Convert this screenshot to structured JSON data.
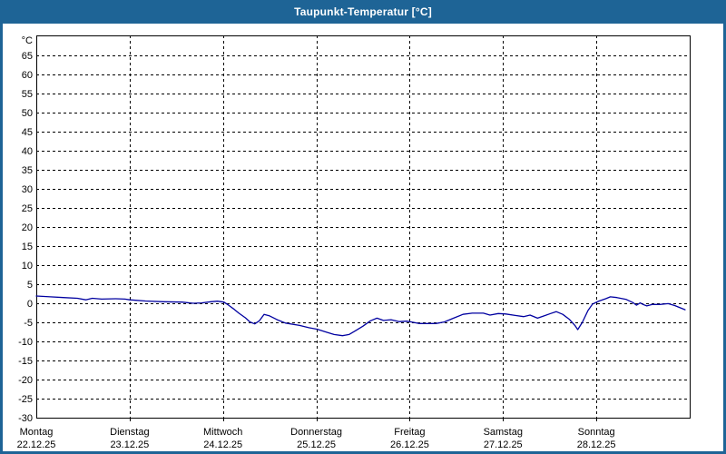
{
  "window": {
    "title": "Taupunkt-Temperatur [°C]"
  },
  "chart_data": {
    "type": "line",
    "title": "Taupunkt-Temperatur [°C]",
    "y_unit_label": "°C",
    "ylabel": "",
    "xlabel": "",
    "ylim": [
      -30,
      70
    ],
    "y_tick_step": 5,
    "y_tick_labels": [
      65,
      60,
      55,
      50,
      45,
      40,
      35,
      30,
      25,
      20,
      15,
      10,
      5,
      0,
      -5,
      -10,
      -15,
      -20,
      -25,
      -30
    ],
    "grid": "dashed-black",
    "legend_position": "none",
    "x_days": [
      {
        "name": "Montag",
        "date": "22.12.25"
      },
      {
        "name": "Dienstag",
        "date": "23.12.25"
      },
      {
        "name": "Mittwoch",
        "date": "24.12.25"
      },
      {
        "name": "Donnerstag",
        "date": "25.12.25"
      },
      {
        "name": "Freitag",
        "date": "26.12.25"
      },
      {
        "name": "Samstag",
        "date": "27.12.25"
      },
      {
        "name": "Sonntag",
        "date": "28.12.25"
      }
    ],
    "series": [
      {
        "name": "Taupunkt-Temperatur",
        "color": "#0000a0",
        "x_unit": "days_from_start",
        "points": [
          [
            0.0,
            1.9
          ],
          [
            0.15,
            1.7
          ],
          [
            0.29,
            1.5
          ],
          [
            0.44,
            1.3
          ],
          [
            0.53,
            0.9
          ],
          [
            0.6,
            1.3
          ],
          [
            0.7,
            1.1
          ],
          [
            0.85,
            1.2
          ],
          [
            0.95,
            1.1
          ],
          [
            1.0,
            0.9
          ],
          [
            1.17,
            0.6
          ],
          [
            1.36,
            0.4
          ],
          [
            1.56,
            0.3
          ],
          [
            1.68,
            0.0
          ],
          [
            1.77,
            0.1
          ],
          [
            1.87,
            0.4
          ],
          [
            1.94,
            0.55
          ],
          [
            2.01,
            0.3
          ],
          [
            2.06,
            -0.5
          ],
          [
            2.12,
            -1.6
          ],
          [
            2.17,
            -2.6
          ],
          [
            2.24,
            -3.8
          ],
          [
            2.29,
            -4.9
          ],
          [
            2.34,
            -5.4
          ],
          [
            2.39,
            -4.6
          ],
          [
            2.44,
            -2.9
          ],
          [
            2.5,
            -3.3
          ],
          [
            2.58,
            -4.3
          ],
          [
            2.67,
            -5.2
          ],
          [
            2.82,
            -5.8
          ],
          [
            2.92,
            -6.4
          ],
          [
            3.01,
            -6.8
          ],
          [
            3.11,
            -7.6
          ],
          [
            3.19,
            -8.2
          ],
          [
            3.28,
            -8.5
          ],
          [
            3.35,
            -8.2
          ],
          [
            3.42,
            -7.2
          ],
          [
            3.5,
            -6.0
          ],
          [
            3.58,
            -4.6
          ],
          [
            3.65,
            -3.9
          ],
          [
            3.72,
            -4.5
          ],
          [
            3.8,
            -4.3
          ],
          [
            3.89,
            -4.8
          ],
          [
            3.97,
            -4.7
          ],
          [
            4.02,
            -4.9
          ],
          [
            4.1,
            -5.3
          ],
          [
            4.28,
            -5.3
          ],
          [
            4.37,
            -4.9
          ],
          [
            4.47,
            -3.9
          ],
          [
            4.57,
            -2.9
          ],
          [
            4.67,
            -2.6
          ],
          [
            4.79,
            -2.6
          ],
          [
            4.86,
            -3.1
          ],
          [
            4.95,
            -2.7
          ],
          [
            5.03,
            -2.8
          ],
          [
            5.13,
            -3.2
          ],
          [
            5.22,
            -3.5
          ],
          [
            5.29,
            -3.1
          ],
          [
            5.37,
            -3.9
          ],
          [
            5.44,
            -3.3
          ],
          [
            5.51,
            -2.7
          ],
          [
            5.57,
            -2.2
          ],
          [
            5.64,
            -2.9
          ],
          [
            5.71,
            -4.2
          ],
          [
            5.77,
            -5.8
          ],
          [
            5.8,
            -6.9
          ],
          [
            5.85,
            -5.0
          ],
          [
            5.91,
            -1.9
          ],
          [
            5.96,
            -0.2
          ],
          [
            6.03,
            0.6
          ],
          [
            6.1,
            1.2
          ],
          [
            6.15,
            1.7
          ],
          [
            6.22,
            1.5
          ],
          [
            6.32,
            1.0
          ],
          [
            6.39,
            0.2
          ],
          [
            6.43,
            -0.5
          ],
          [
            6.47,
            0.1
          ],
          [
            6.5,
            -0.3
          ],
          [
            6.54,
            -0.7
          ],
          [
            6.6,
            -0.3
          ],
          [
            6.68,
            -0.3
          ],
          [
            6.77,
            -0.1
          ],
          [
            6.84,
            -0.6
          ],
          [
            6.9,
            -1.2
          ],
          [
            6.95,
            -1.7
          ]
        ]
      }
    ],
    "colors": {
      "titlebar": "#1e6496",
      "line": "#0000a0",
      "grid": "#000000",
      "background": "#ffffff"
    }
  }
}
